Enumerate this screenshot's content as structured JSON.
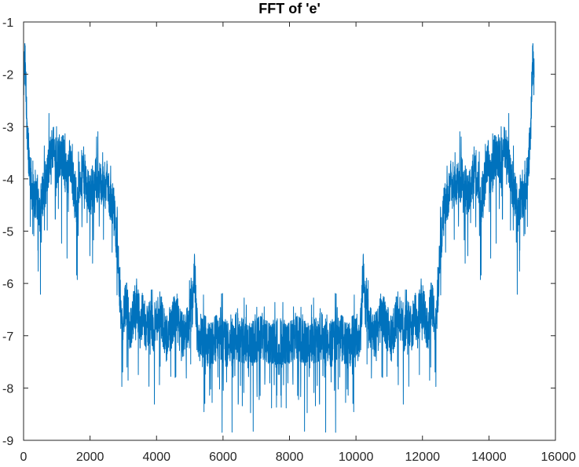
{
  "chart_data": {
    "type": "line",
    "title": "FFT of 'e'",
    "xlabel": "",
    "ylabel": "",
    "xlim": [
      0,
      16000
    ],
    "ylim": [
      -9,
      -1
    ],
    "xticks": [
      0,
      2000,
      4000,
      6000,
      8000,
      10000,
      12000,
      14000,
      16000
    ],
    "yticks": [
      -9,
      -8,
      -7,
      -6,
      -5,
      -4,
      -3,
      -2,
      -1
    ],
    "grid": false,
    "legend": "none",
    "series": [
      {
        "color": "#0072BD",
        "symmetric_about": 7680,
        "n_points": 15360,
        "x": [
          0,
          40,
          80,
          120,
          200,
          300,
          400,
          500,
          600,
          700,
          800,
          900,
          1000,
          1100,
          1200,
          1300,
          1400,
          1500,
          1600,
          1700,
          1800,
          1900,
          2000,
          2100,
          2200,
          2300,
          2400,
          2500,
          2600,
          2700,
          2800,
          2850,
          2900,
          2950,
          3000,
          3100,
          3200,
          3300,
          3400,
          3500,
          3600,
          3700,
          3800,
          3900,
          4000,
          4100,
          4200,
          4300,
          4400,
          4500,
          4600,
          4700,
          4800,
          4900,
          5000,
          5100,
          5150,
          5200,
          5250,
          5300,
          5400,
          5500,
          5600,
          5800,
          6000,
          6200,
          6400,
          6600,
          6800,
          7000,
          7200,
          7400,
          7600,
          7680
        ],
        "y": [
          -2.2,
          -1.7,
          -2.6,
          -3.1,
          -3.9,
          -4.4,
          -4.3,
          -4.6,
          -4.2,
          -4.0,
          -3.6,
          -3.3,
          -3.7,
          -3.5,
          -3.6,
          -4.0,
          -3.6,
          -4.1,
          -4.4,
          -4.0,
          -3.8,
          -4.2,
          -4.3,
          -4.1,
          -4.0,
          -4.1,
          -4.2,
          -4.0,
          -4.4,
          -4.5,
          -5.2,
          -5.6,
          -6.2,
          -6.8,
          -6.6,
          -6.4,
          -6.9,
          -6.6,
          -6.3,
          -6.8,
          -6.6,
          -6.9,
          -6.7,
          -6.9,
          -6.7,
          -6.5,
          -6.8,
          -7.0,
          -6.9,
          -6.7,
          -6.6,
          -6.9,
          -7.0,
          -6.9,
          -6.6,
          -6.3,
          -5.7,
          -6.8,
          -6.9,
          -7.1,
          -7.0,
          -7.1,
          -7.2,
          -7.0,
          -7.1,
          -7.2,
          -7.0,
          -7.1,
          -7.2,
          -7.1,
          -7.0,
          -7.2,
          -7.1,
          -7.1
        ]
      }
    ]
  }
}
